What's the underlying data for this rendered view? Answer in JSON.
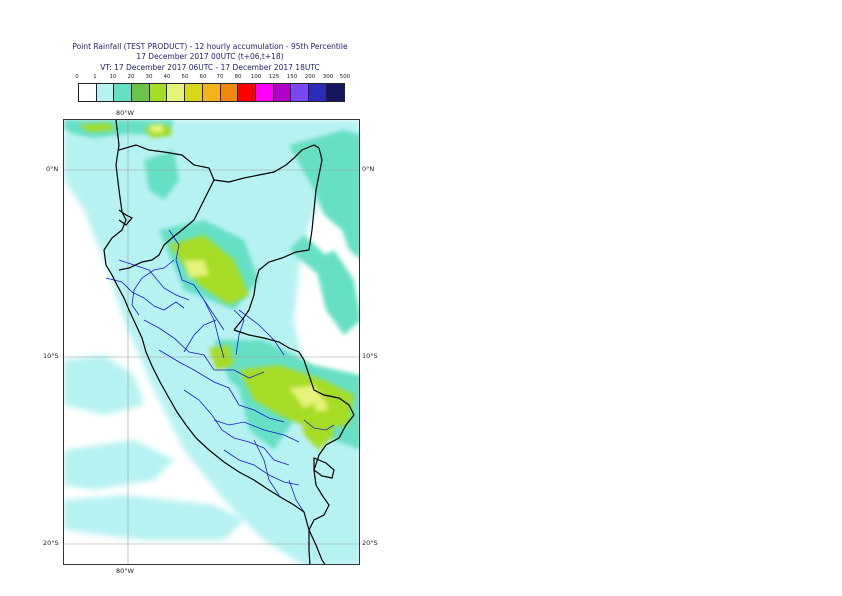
{
  "title": {
    "line1": "Point Rainfall (TEST PRODUCT) - 12 hourly accumulation - 95th Percentile",
    "line2": "17 December 2017 00UTC (t+06,t+18)",
    "line3": "VT: 17 December 2017 06UTC - 17 December 2017 18UTC"
  },
  "legend": {
    "labels": [
      "0",
      "1",
      "10",
      "20",
      "30",
      "40",
      "50",
      "60",
      "70",
      "80",
      "100",
      "125",
      "150",
      "200",
      "300",
      "500"
    ],
    "colors": [
      "#ffffff",
      "#b7f2f2",
      "#66e0c4",
      "#6cc34a",
      "#a6dc27",
      "#e6f27a",
      "#d8d61a",
      "#f2b419",
      "#f2870e",
      "#ff0000",
      "#ff00ff",
      "#b000c8",
      "#7a48f0",
      "#2c2cb8",
      "#16165e"
    ]
  },
  "axes": {
    "lon_top": "80°W",
    "lon_bottom": "80°W",
    "lat_0_left": "0°N",
    "lat_0_right": "0°N",
    "lat_10_left": "10°S",
    "lat_10_right": "10°S",
    "lat_20_left": "20°S",
    "lat_20_right": "20°S"
  }
}
